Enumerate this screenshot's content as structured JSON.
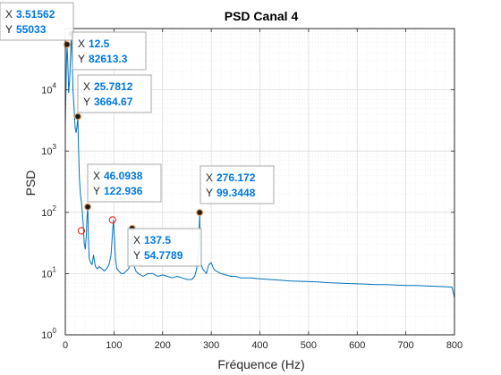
{
  "chart_data": {
    "type": "line",
    "title": "PSD Canal 4",
    "xlabel": "Fréquence (Hz)",
    "ylabel": "PSD",
    "xlim": [
      0,
      800
    ],
    "ylim": [
      1,
      100000
    ],
    "yscale": "log",
    "grid": "on (major and minor)",
    "xticks": [
      0,
      100,
      200,
      300,
      400,
      500,
      600,
      700,
      800
    ],
    "xtick_labels": [
      "0",
      "100",
      "200",
      "300",
      "400",
      "500",
      "600",
      "700",
      "800"
    ],
    "yticks": [
      1,
      10,
      100,
      1000,
      10000
    ],
    "ytick_bases": [
      "10",
      "10",
      "10",
      "10",
      "10"
    ],
    "ytick_exponents": [
      "0",
      "1",
      "2",
      "3",
      "4"
    ],
    "series": [
      {
        "color": "#0072bd",
        "x": [
          0,
          2,
          3.51562,
          5,
          7,
          9,
          11,
          12.5,
          14,
          16,
          18,
          20,
          22,
          24,
          25.7812,
          27,
          29,
          31,
          33,
          35,
          37,
          39,
          41,
          43,
          44.5,
          46.0938,
          47.5,
          49,
          52,
          55,
          58,
          62,
          66,
          70,
          75,
          80,
          85,
          90,
          94,
          97,
          99,
          101,
          103,
          106,
          110,
          115,
          120,
          125,
          130,
          134,
          136,
          137.5,
          139,
          141,
          145,
          150,
          160,
          170,
          180,
          190,
          200,
          210,
          220,
          230,
          240,
          250,
          260,
          266,
          270,
          273,
          275,
          276.172,
          277.5,
          279,
          282,
          286,
          290,
          295,
          300,
          305,
          310,
          320,
          330,
          340,
          350,
          360,
          380,
          400,
          420,
          440,
          460,
          480,
          500,
          520,
          540,
          560,
          580,
          600,
          620,
          640,
          660,
          680,
          700,
          720,
          740,
          760,
          780,
          795,
          800
        ],
        "y": [
          2500,
          20000,
          55033,
          30000,
          9000,
          15000,
          40000,
          82613.3,
          30000,
          9000,
          5000,
          2500,
          2000,
          2500,
          3664.67,
          1200,
          350,
          200,
          150,
          100,
          60,
          30,
          25,
          40,
          80,
          122.936,
          40,
          18,
          15,
          14,
          20,
          13,
          12,
          13,
          12,
          11,
          12,
          14,
          20,
          45,
          75,
          40,
          18,
          12,
          11,
          10,
          10,
          11,
          12,
          15,
          30,
          54.7789,
          25,
          14,
          11,
          10,
          9,
          10,
          10,
          9,
          9.5,
          9,
          8.5,
          9,
          8.5,
          8,
          8,
          9,
          12,
          20,
          40,
          99.3448,
          30,
          15,
          12,
          11,
          10,
          14,
          15,
          12,
          11,
          10,
          9.5,
          9,
          9,
          8.5,
          8.5,
          8.2,
          8,
          7.8,
          7.6,
          7.5,
          7.4,
          7.3,
          7.1,
          7.0,
          6.9,
          6.8,
          6.7,
          6.6,
          6.6,
          6.5,
          6.4,
          6.4,
          6.3,
          6.2,
          6.1,
          6.0,
          4
        ]
      }
    ],
    "markers": [
      {
        "x": 3.51562,
        "y": 55033,
        "style": "filled"
      },
      {
        "x": 12.5,
        "y": 82613.3,
        "style": "filled"
      },
      {
        "x": 25.7812,
        "y": 3664.67,
        "style": "filled"
      },
      {
        "x": 33,
        "y": 50,
        "style": "hollow"
      },
      {
        "x": 46.0938,
        "y": 122.936,
        "style": "filled"
      },
      {
        "x": 97,
        "y": 75,
        "style": "hollow"
      },
      {
        "x": 137.5,
        "y": 54.7789,
        "style": "filled"
      },
      {
        "x": 276.172,
        "y": 99.3448,
        "style": "filled"
      }
    ],
    "datatips": [
      {
        "x_key": "X",
        "x_val": "3.51562",
        "y_key": "Y",
        "y_val": "55033",
        "anchor_x": 3.51562,
        "anchor_y": 55033
      },
      {
        "x_key": "X",
        "x_val": "12.5",
        "y_key": "Y",
        "y_val": "82613.3",
        "anchor_x": 12.5,
        "anchor_y": 82613.3
      },
      {
        "x_key": "X",
        "x_val": "25.7812",
        "y_key": "Y",
        "y_val": "3664.67",
        "anchor_x": 25.7812,
        "anchor_y": 3664.67
      },
      {
        "x_key": "X",
        "x_val": "46.0938",
        "y_key": "Y",
        "y_val": "122.936",
        "anchor_x": 46.0938,
        "anchor_y": 122.936
      },
      {
        "x_key": "X",
        "x_val": "137.5",
        "y_key": "Y",
        "y_val": "54.7789",
        "anchor_x": 137.5,
        "anchor_y": 54.7789
      },
      {
        "x_key": "X",
        "x_val": "276.172",
        "y_key": "Y",
        "y_val": "99.3448",
        "anchor_x": 276.172,
        "anchor_y": 99.3448
      }
    ]
  }
}
